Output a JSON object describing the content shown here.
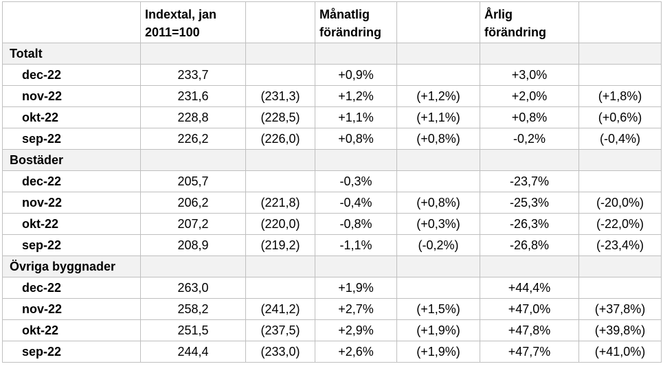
{
  "header": {
    "col1": "",
    "col2": "Indextal, jan 2011=100",
    "col3": "",
    "col4": "Månatlig förändring",
    "col5": "",
    "col6": "Årlig förändring",
    "col7": ""
  },
  "groups": [
    {
      "name": "Totalt",
      "rows": [
        {
          "label": "dec-22",
          "index": "233,7",
          "index_adj": "",
          "monthly": "+0,9%",
          "monthly_adj": "",
          "yearly": "+3,0%",
          "yearly_adj": ""
        },
        {
          "label": "nov-22",
          "index": "231,6",
          "index_adj": "(231,3)",
          "monthly": "+1,2%",
          "monthly_adj": "(+1,2%)",
          "yearly": "+2,0%",
          "yearly_adj": "(+1,8%)"
        },
        {
          "label": "okt-22",
          "index": "228,8",
          "index_adj": "(228,5)",
          "monthly": "+1,1%",
          "monthly_adj": "(+1,1%)",
          "yearly": "+0,8%",
          "yearly_adj": "(+0,6%)"
        },
        {
          "label": "sep-22",
          "index": "226,2",
          "index_adj": "(226,0)",
          "monthly": "+0,8%",
          "monthly_adj": "(+0,8%)",
          "yearly": "-0,2%",
          "yearly_adj": "(-0,4%)"
        }
      ]
    },
    {
      "name": "Bostäder",
      "rows": [
        {
          "label": "dec-22",
          "index": "205,7",
          "index_adj": "",
          "monthly": "-0,3%",
          "monthly_adj": "",
          "yearly": "-23,7%",
          "yearly_adj": ""
        },
        {
          "label": "nov-22",
          "index": "206,2",
          "index_adj": "(221,8)",
          "monthly": "-0,4%",
          "monthly_adj": "(+0,8%)",
          "yearly": "-25,3%",
          "yearly_adj": "(-20,0%)"
        },
        {
          "label": "okt-22",
          "index": "207,2",
          "index_adj": "(220,0)",
          "monthly": "-0,8%",
          "monthly_adj": "(+0,3%)",
          "yearly": "-26,3%",
          "yearly_adj": "(-22,0%)"
        },
        {
          "label": "sep-22",
          "index": "208,9",
          "index_adj": "(219,2)",
          "monthly": "-1,1%",
          "monthly_adj": "(-0,2%)",
          "yearly": "-26,8%",
          "yearly_adj": "(-23,4%)"
        }
      ]
    },
    {
      "name": "Övriga byggnader",
      "rows": [
        {
          "label": "dec-22",
          "index": "263,0",
          "index_adj": "",
          "monthly": "+1,9%",
          "monthly_adj": "",
          "yearly": "+44,4%",
          "yearly_adj": ""
        },
        {
          "label": "nov-22",
          "index": "258,2",
          "index_adj": "(241,2)",
          "monthly": "+2,7%",
          "monthly_adj": "(+1,5%)",
          "yearly": "+47,0%",
          "yearly_adj": "(+37,8%)"
        },
        {
          "label": "okt-22",
          "index": "251,5",
          "index_adj": "(237,5)",
          "monthly": "+2,9%",
          "monthly_adj": "(+1,9%)",
          "yearly": "+47,8%",
          "yearly_adj": "(+39,8%)"
        },
        {
          "label": "sep-22",
          "index": "244,4",
          "index_adj": "(233,0)",
          "monthly": "+2,6%",
          "monthly_adj": "(+1,9%)",
          "yearly": "+47,7%",
          "yearly_adj": "(+41,0%)"
        }
      ]
    }
  ]
}
